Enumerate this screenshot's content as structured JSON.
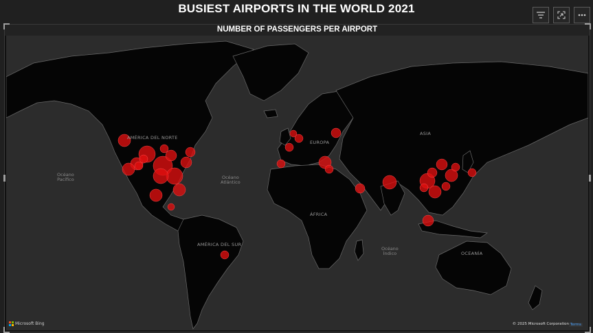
{
  "page": {
    "title": "BUSIEST AIRPORTS IN THE WORLD 2021"
  },
  "toolbar": {
    "icons": [
      "filter-icon",
      "focus-mode-icon",
      "more-options-icon"
    ]
  },
  "visual": {
    "title": "NUMBER OF PASSENGERS PER AIRPORT",
    "map_labels": {
      "north_america": "AMÉRICA DEL NORTE",
      "south_america": "AMÉRICA DEL SUR",
      "europe": "EUROPA",
      "asia": "ASIA",
      "africa": "ÁFRICA",
      "oceania": "OCEANÍA",
      "pacific_line1": "Océano",
      "pacific_line2": "Pacífico",
      "atlantic_line1": "Océano",
      "atlantic_line2": "Atlántico",
      "indian_line1": "Océano",
      "indian_line2": "Índico"
    },
    "attribution": {
      "bing": "Microsoft Bing",
      "copyright": "© 2025 Microsoft Corporation",
      "terms": "Terms"
    }
  },
  "colors": {
    "bubble": "#e01010",
    "land": "#050505",
    "water": "#2c2c2c",
    "border": "#6a6a6a"
  }
}
